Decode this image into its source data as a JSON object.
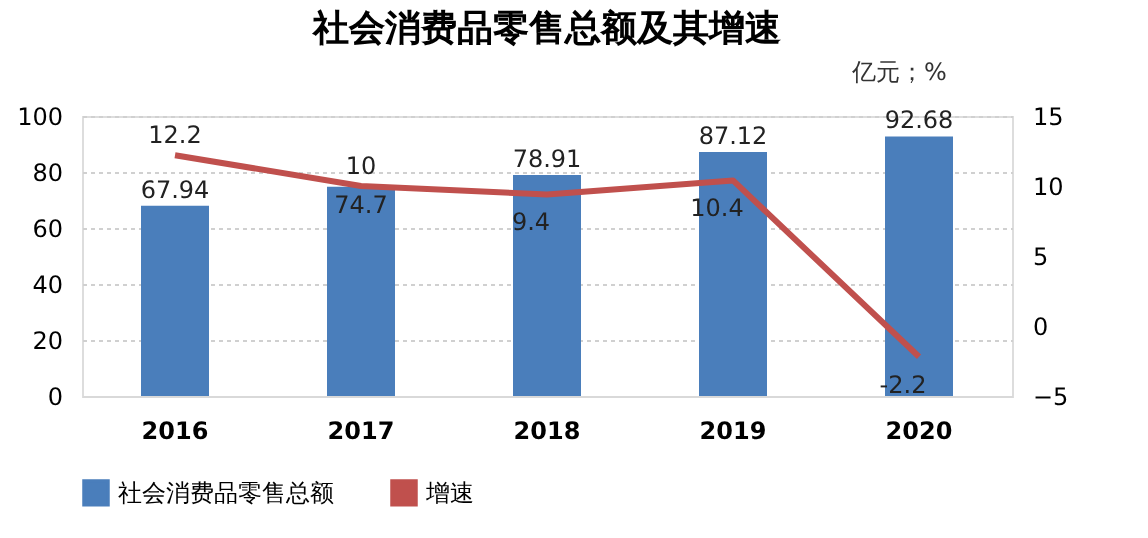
{
  "chart_data": {
    "type": "bar",
    "title": "社会消费品零售总额及其增速",
    "annotations": [
      "亿元；%"
    ],
    "categories": [
      "2016",
      "2017",
      "2018",
      "2019",
      "2020"
    ],
    "series": [
      {
        "name": "社会消费品零售总额",
        "color": "#4a7ebb",
        "values": [
          67.94,
          74.7,
          78.91,
          87.12,
          92.68
        ]
      },
      {
        "name": "增速",
        "type": "line",
        "axis": "y2",
        "color": "#c0504d",
        "values": [
          12.2,
          10,
          9.4,
          10.4,
          -2.2
        ]
      }
    ],
    "ylim": [
      0,
      100
    ],
    "yticks": [
      0,
      20,
      40,
      60,
      80,
      100
    ],
    "y2lim": [
      -5,
      15
    ],
    "y2ticks": [
      -5,
      0,
      5,
      10,
      15
    ],
    "grid": "y",
    "legend": "bottom",
    "data_labels": true,
    "marker": "none",
    "line_style": "solid"
  }
}
